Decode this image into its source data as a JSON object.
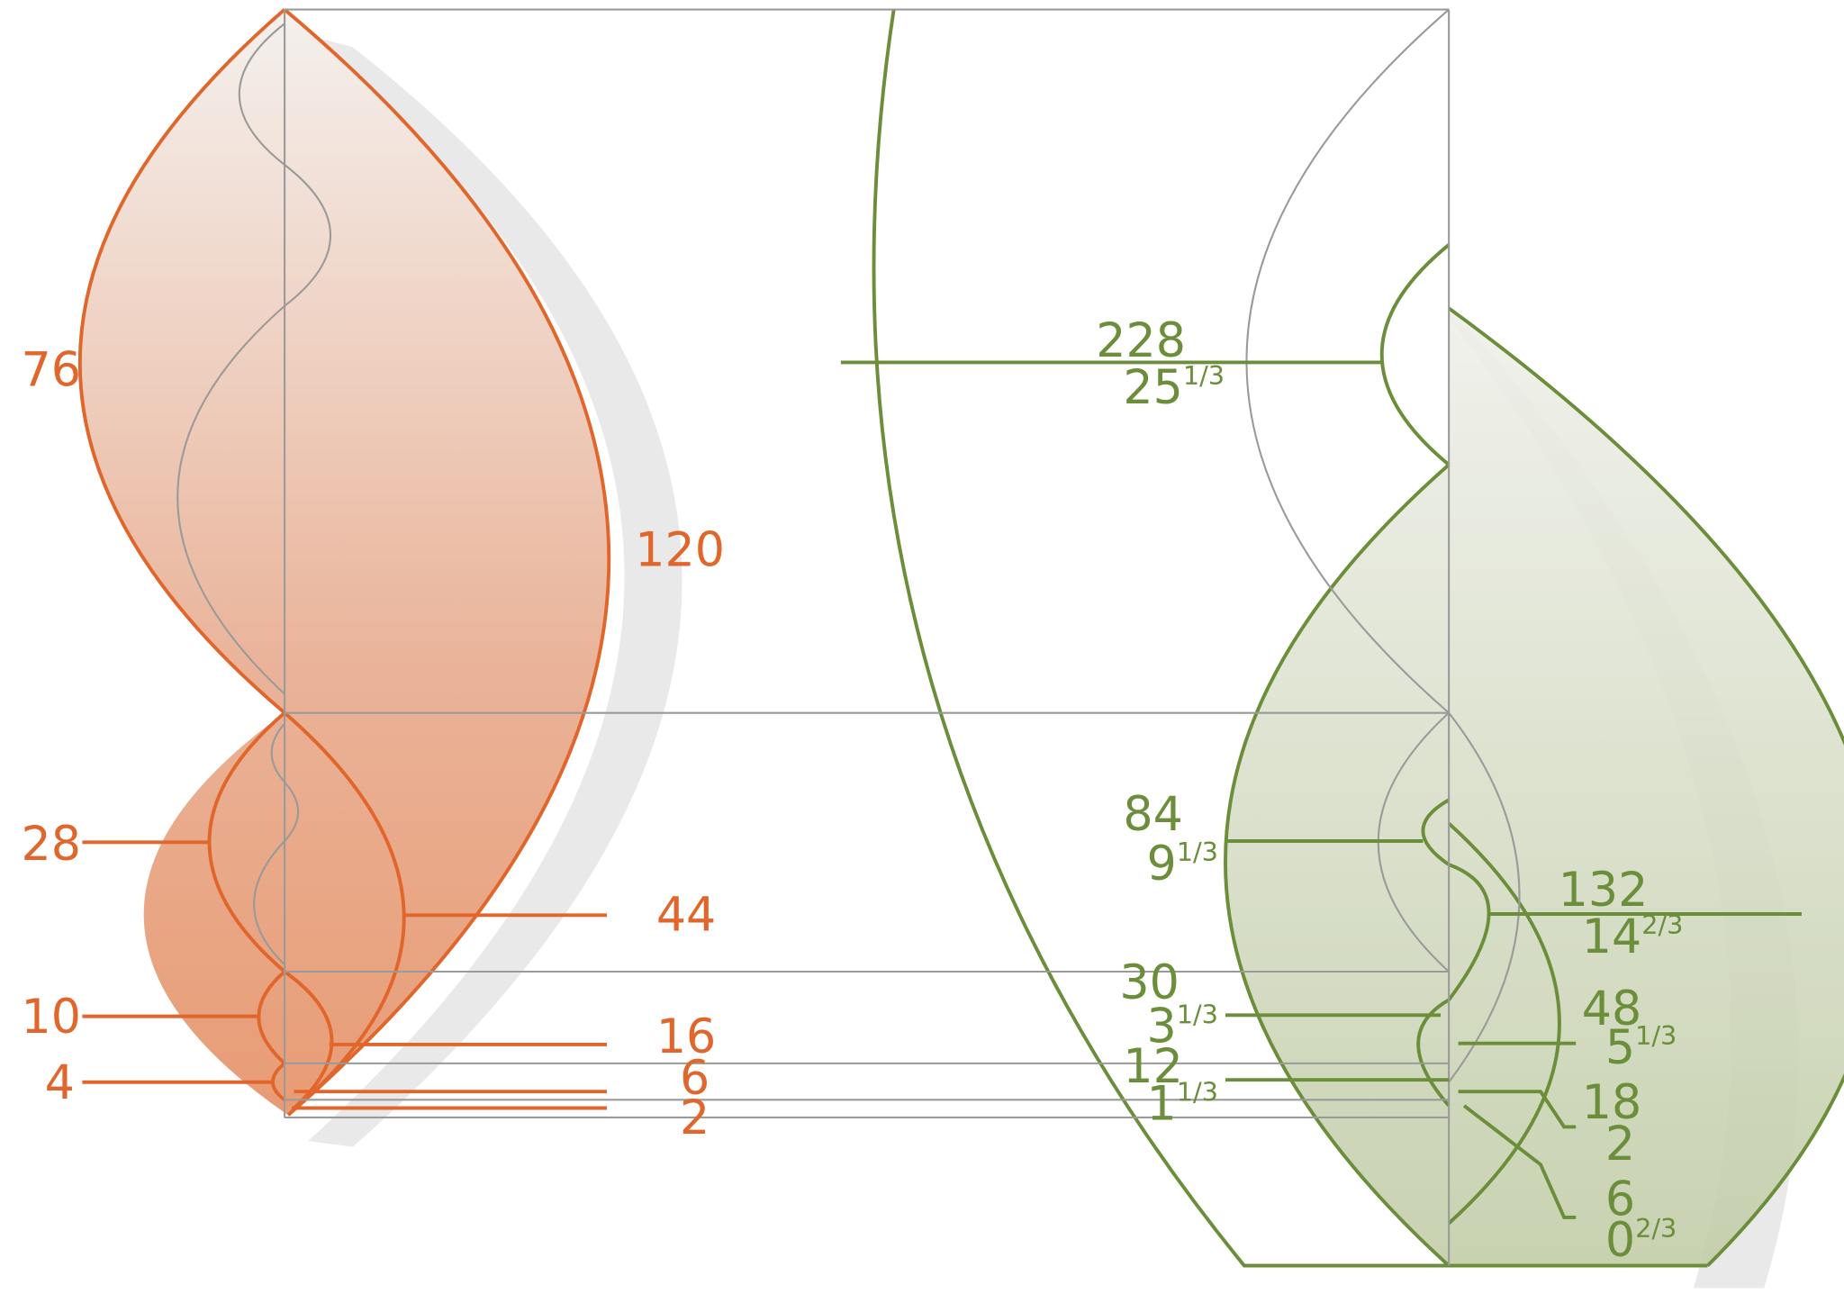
{
  "orange": {
    "labels": [
      "76",
      "120",
      "28",
      "44",
      "10",
      "16",
      "4",
      "6",
      "2"
    ]
  },
  "green": {
    "labels": [
      {
        "top": "228",
        "bottom": "25",
        "fraction": "1/3"
      },
      {
        "top": "84",
        "bottom": "9",
        "fraction": "1/3"
      },
      {
        "top": "132",
        "bottom": "14",
        "fraction": "2/3"
      },
      {
        "top": "30",
        "bottom": "3",
        "fraction": "1/3"
      },
      {
        "top": "48",
        "bottom": "5",
        "fraction": "1/3"
      },
      {
        "top": "12",
        "bottom": "1",
        "fraction": "1/3"
      },
      {
        "top": "18",
        "bottom": "2"
      },
      {
        "top": "6",
        "bottom": "0",
        "fraction": "2/3"
      }
    ]
  }
}
